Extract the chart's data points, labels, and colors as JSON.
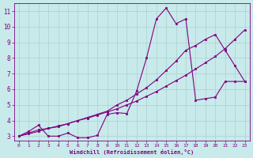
{
  "bg_color": "#c8eaea",
  "grid_color": "#aacfcf",
  "line_color": "#800080",
  "marker_color": "#800080",
  "xlabel": "Windchill (Refroidissement éolien,°C)",
  "xlabel_color": "#800080",
  "tick_color": "#800080",
  "xlim": [
    -0.5,
    23.5
  ],
  "ylim": [
    2.7,
    11.5
  ],
  "xticks": [
    0,
    1,
    2,
    3,
    4,
    5,
    6,
    7,
    8,
    9,
    10,
    11,
    12,
    13,
    14,
    15,
    16,
    17,
    18,
    19,
    20,
    21,
    22,
    23
  ],
  "yticks": [
    3,
    4,
    5,
    6,
    7,
    8,
    9,
    10,
    11
  ],
  "series": [
    {
      "x": [
        0,
        1,
        2,
        3,
        4,
        5,
        6,
        7,
        8,
        9,
        10,
        11,
        12,
        13,
        14,
        15,
        16,
        17,
        18,
        19,
        20,
        21,
        22,
        23
      ],
      "y": [
        3.0,
        3.3,
        3.7,
        3.0,
        3.0,
        3.2,
        2.9,
        2.9,
        3.05,
        4.4,
        4.5,
        4.45,
        5.9,
        8.0,
        10.5,
        11.2,
        10.2,
        10.5,
        5.3,
        5.4,
        5.5,
        6.5,
        6.5,
        6.5
      ]
    },
    {
      "x": [
        0,
        1,
        2,
        3,
        4,
        5,
        6,
        7,
        8,
        9,
        10,
        11,
        12,
        13,
        14,
        15,
        16,
        17,
        18,
        19,
        20,
        21,
        22,
        23
      ],
      "y": [
        3.0,
        3.2,
        3.4,
        3.5,
        3.6,
        3.8,
        4.0,
        4.2,
        4.4,
        4.6,
        5.0,
        5.3,
        5.7,
        6.1,
        6.6,
        7.2,
        7.8,
        8.5,
        8.8,
        9.2,
        9.5,
        8.5,
        7.5,
        6.5
      ]
    },
    {
      "x": [
        0,
        1,
        2,
        3,
        4,
        5,
        6,
        7,
        8,
        9,
        10,
        11,
        12,
        13,
        14,
        15,
        16,
        17,
        18,
        19,
        20,
        21,
        22,
        23
      ],
      "y": [
        3.0,
        3.15,
        3.3,
        3.5,
        3.65,
        3.8,
        4.0,
        4.15,
        4.35,
        4.55,
        4.75,
        5.0,
        5.25,
        5.55,
        5.85,
        6.2,
        6.55,
        6.9,
        7.3,
        7.7,
        8.1,
        8.6,
        9.2,
        9.8
      ]
    }
  ]
}
